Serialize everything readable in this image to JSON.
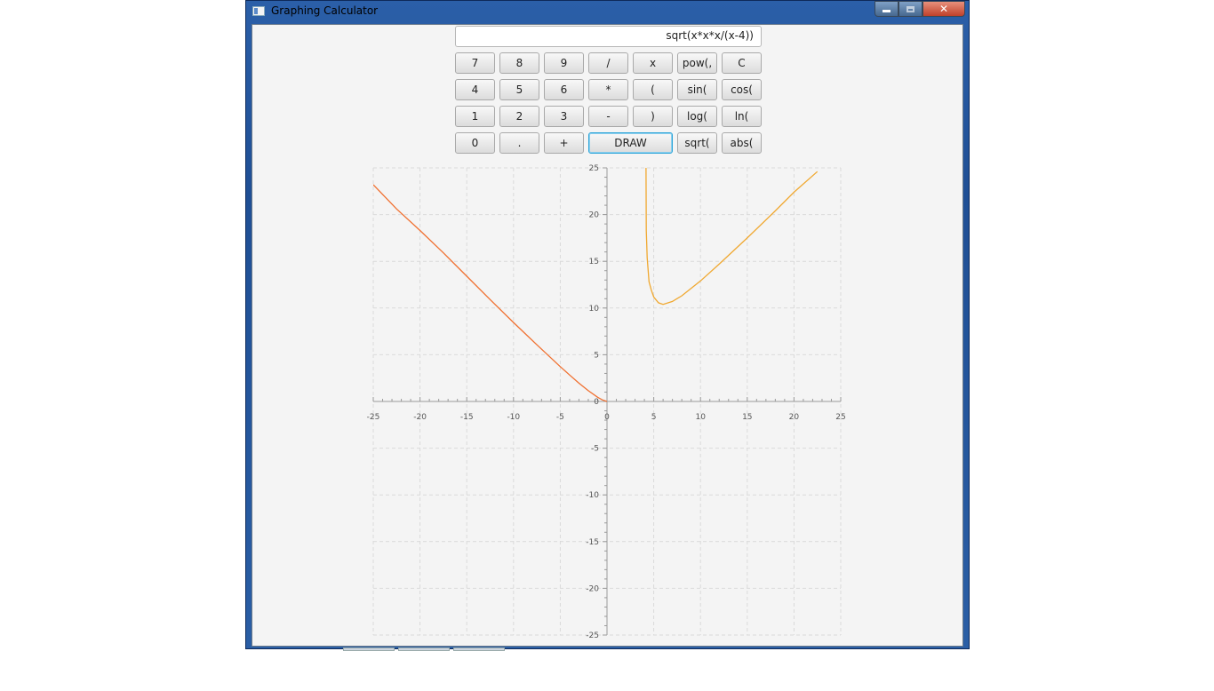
{
  "window": {
    "title": "Graphing Calculator"
  },
  "expression": {
    "value": "sqrt(x*x*x/(x-4))"
  },
  "keypad": {
    "rows": [
      [
        "7",
        "8",
        "9",
        "/",
        "x",
        "pow(,",
        "C"
      ],
      [
        "4",
        "5",
        "6",
        "*",
        "(",
        "sin(",
        "cos("
      ],
      [
        "1",
        "2",
        "3",
        "-",
        ")",
        "log(",
        "ln("
      ],
      [
        "0",
        ".",
        "+",
        "DRAW",
        "sqrt(",
        "abs("
      ]
    ],
    "focused": "DRAW"
  },
  "chart_data": {
    "type": "line",
    "title": "",
    "xlabel": "",
    "ylabel": "",
    "xlim": [
      -25,
      25
    ],
    "ylim": [
      -25,
      25
    ],
    "x_ticks": [
      -25,
      -20,
      -15,
      -10,
      -5,
      0,
      5,
      10,
      15,
      20,
      25
    ],
    "y_ticks": [
      25,
      20,
      15,
      10,
      5,
      0,
      -5,
      -10,
      -15,
      -20,
      -25
    ],
    "grid": true,
    "series": [
      {
        "color": "#f07030",
        "x": [
          -25,
          -22.5,
          -20,
          -17.5,
          -15,
          -12.5,
          -10,
          -7.5,
          -5,
          -4,
          -3,
          -2,
          -1,
          -0.5,
          0
        ],
        "y": [
          23.2,
          20.6,
          18.3,
          15.9,
          13.4,
          10.9,
          8.45,
          6.06,
          3.73,
          2.83,
          1.96,
          1.15,
          0.45,
          0.17,
          0
        ]
      },
      {
        "color": "#f0a830",
        "x": [
          4.2,
          4.3,
          4.5,
          4.75,
          5,
          5.5,
          6,
          7,
          8,
          10,
          12,
          15,
          18,
          20,
          22.5
        ],
        "y": [
          18.3,
          15.4,
          12.8,
          11.87,
          11.18,
          10.56,
          10.39,
          10.7,
          11.31,
          12.9,
          14.7,
          17.5,
          20.4,
          22.4,
          24.6
        ]
      }
    ]
  }
}
